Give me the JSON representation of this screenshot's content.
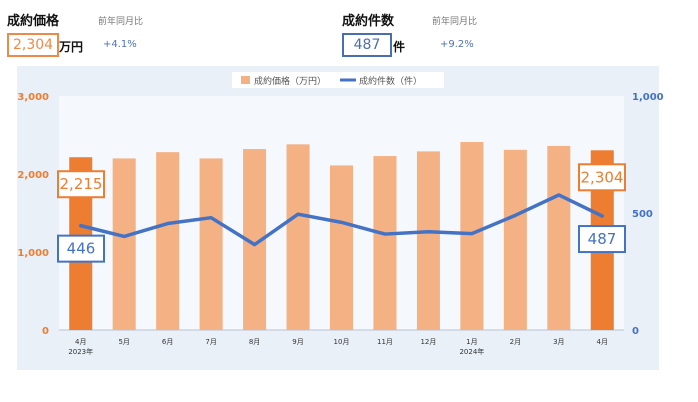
{
  "kpis": {
    "price": {
      "title": "成約価格",
      "caption": "前年同月比",
      "value": "2,304",
      "unit": "万円",
      "delta": "+4.1%"
    },
    "count": {
      "title": "成約件数",
      "caption": "前年同月比",
      "value": "487",
      "unit": "件",
      "delta": "+9.2%"
    }
  },
  "chart_data": {
    "type": "bar",
    "categories": [
      "4月",
      "5月",
      "6月",
      "7月",
      "8月",
      "9月",
      "10月",
      "11月",
      "12月",
      "1月",
      "2月",
      "3月",
      "4月"
    ],
    "year_labels": [
      "2023年",
      "",
      "",
      "",
      "",
      "",
      "",
      "",
      "",
      "2024年",
      "",
      "",
      ""
    ],
    "series": [
      {
        "name": "成約価格（万円）",
        "type": "bar",
        "axis": "left",
        "values": [
          2215,
          2200,
          2280,
          2200,
          2320,
          2380,
          2110,
          2230,
          2290,
          2410,
          2310,
          2360,
          2304
        ]
      },
      {
        "name": "成約件数（件）",
        "type": "line",
        "axis": "right",
        "values": [
          446,
          400,
          455,
          480,
          365,
          495,
          460,
          410,
          420,
          412,
          490,
          577,
          487
        ]
      }
    ],
    "highlight_indices": [
      0,
      12
    ],
    "y_left": {
      "ylim": [
        0,
        3000
      ],
      "ticks": [
        0,
        1000,
        2000,
        3000
      ],
      "tick_labels": [
        "0",
        "1,000",
        "2,000",
        "3,000"
      ]
    },
    "y_right": {
      "ylim": [
        0,
        1000
      ],
      "ticks": [
        0,
        500,
        1000
      ],
      "tick_labels": [
        "0",
        "500",
        "1,000"
      ]
    },
    "callouts": {
      "price_first": "2,215",
      "price_last": "2,304",
      "count_first": "446",
      "count_last": "487"
    },
    "grid": false,
    "legend_position": "top-center",
    "colors": {
      "bar": "#f4b183",
      "bar_highlight": "#ed7d31",
      "line": "#4472c4",
      "left_axis": "#ed7d31",
      "right_axis": "#4472c4"
    }
  }
}
